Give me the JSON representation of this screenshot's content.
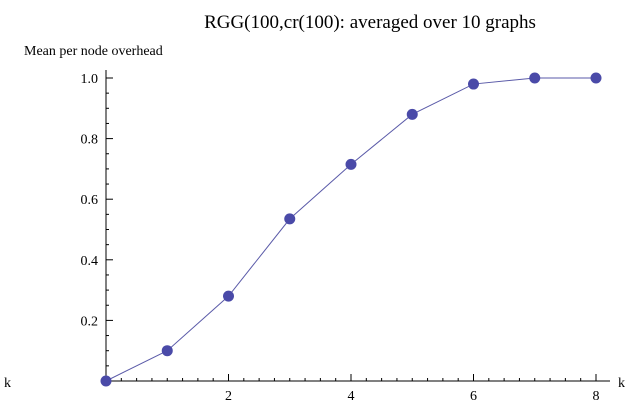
{
  "chart_data": {
    "type": "line",
    "title": "RGG(100,cr(100): averaged over 10 graphs",
    "ylabel": "Mean per node overhead",
    "xlabel": "k",
    "left_label": "k",
    "xlim": [
      0,
      8
    ],
    "ylim": [
      0,
      1.0
    ],
    "xticks": [
      2,
      4,
      6,
      8
    ],
    "xtick_labels": [
      "2",
      "4",
      "6",
      "8"
    ],
    "yticks": [
      0.2,
      0.4,
      0.6,
      0.8,
      1.0
    ],
    "ytick_labels": [
      "0.2",
      "0.4",
      "0.6",
      "0.8",
      "1.0"
    ],
    "grid": false,
    "legend": "none",
    "series": [
      {
        "x": [
          0,
          1,
          2,
          3,
          4,
          5,
          6,
          7,
          8
        ],
        "y": [
          0.0,
          0.1,
          0.28,
          0.535,
          0.715,
          0.88,
          0.98,
          1.0,
          1.0
        ]
      }
    ],
    "colors": {
      "line": "#5a5aa8",
      "marker": "#4a4aa8"
    }
  }
}
